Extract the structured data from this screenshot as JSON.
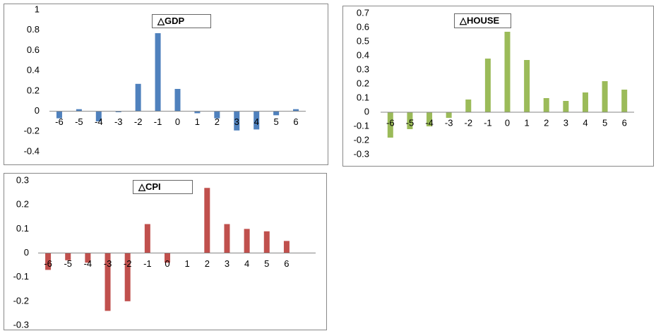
{
  "chart_data": [
    {
      "type": "bar",
      "title": "△GDP",
      "categories": [
        "-6",
        "-5",
        "-4",
        "-3",
        "-2",
        "-1",
        "0",
        "1",
        "2",
        "3",
        "4",
        "5",
        "6"
      ],
      "values": [
        -0.07,
        0.02,
        -0.1,
        -0.01,
        0.27,
        0.77,
        0.22,
        -0.02,
        -0.07,
        -0.19,
        -0.18,
        -0.04,
        0.02
      ],
      "color": "#4f81bd",
      "ylim": [
        -0.4,
        1
      ],
      "yticks": [
        -0.4,
        -0.2,
        0,
        0.2,
        0.4,
        0.6,
        0.8,
        1
      ]
    },
    {
      "type": "bar",
      "title": "△HOUSE",
      "categories": [
        "-6",
        "-5",
        "-4",
        "-3",
        "-2",
        "-1",
        "0",
        "1",
        "2",
        "3",
        "4",
        "5",
        "6"
      ],
      "values": [
        -0.18,
        -0.12,
        -0.1,
        -0.04,
        0.09,
        0.38,
        0.57,
        0.37,
        0.1,
        0.08,
        0.14,
        0.22,
        0.16
      ],
      "color": "#9bbb59",
      "ylim": [
        -0.3,
        0.7
      ],
      "yticks": [
        -0.3,
        -0.2,
        -0.1,
        0,
        0.1,
        0.2,
        0.3,
        0.4,
        0.5,
        0.6,
        0.7
      ]
    },
    {
      "type": "bar",
      "title": "△CPI",
      "categories": [
        "-6",
        "-5",
        "-4",
        "-3",
        "-2",
        "-1",
        "0",
        "1",
        "2",
        "3",
        "4",
        "5",
        "6"
      ],
      "values": [
        -0.07,
        -0.03,
        -0.04,
        -0.24,
        -0.2,
        0.12,
        -0.04,
        0,
        0.27,
        0.12,
        0.1,
        0.09,
        0.05
      ],
      "color": "#c0504d",
      "ylim": [
        -0.3,
        0.3
      ],
      "yticks": [
        -0.3,
        -0.2,
        -0.1,
        0,
        0.1,
        0.2,
        0.3
      ]
    }
  ]
}
